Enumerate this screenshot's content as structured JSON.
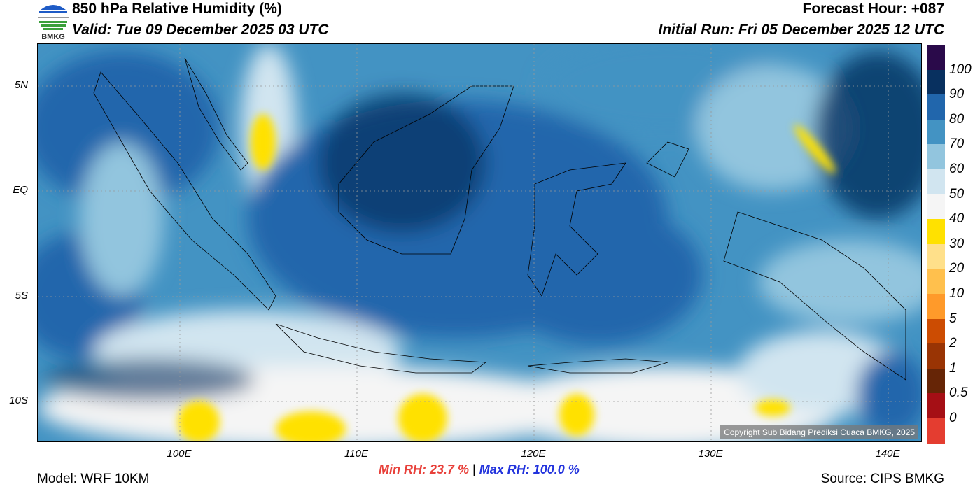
{
  "header": {
    "title": "850 hPa Relative Humidity (%)",
    "valid": "Valid: Tue 09 December 2025 03 UTC",
    "forecast_hour": "Forecast Hour: +087",
    "initial_run": "Initial Run: Fri 05 December 2025 12 UTC",
    "logo_text": "BMKG"
  },
  "axes": {
    "lat_labels": [
      "5N",
      "EQ",
      "5S",
      "10S"
    ],
    "lon_labels": [
      "100E",
      "110E",
      "120E",
      "130E",
      "140E"
    ]
  },
  "colorbar": {
    "labels": [
      "100",
      "90",
      "80",
      "70",
      "60",
      "50",
      "40",
      "30",
      "20",
      "10",
      "5",
      "2",
      "1",
      "0.5",
      "0"
    ],
    "colors": [
      "#2a0a4a",
      "#08305f",
      "#2166ac",
      "#4393c3",
      "#92c5de",
      "#d1e5f0",
      "#f5f5f5",
      "#ffe100",
      "#ffe08a",
      "#ffc04d",
      "#ff9a2a",
      "#cc4c02",
      "#993404",
      "#662506",
      "#a50f15",
      "#e43d30"
    ]
  },
  "footer": {
    "model": "Model: WRF 10KM",
    "min_rh": "Min RH:  23.7 %",
    "separator": "|",
    "max_rh": "Max RH: 100.0 %",
    "source": "Source: CIPS BMKG",
    "copyright": "Copyright Sub Bidang Prediksi Cuaca BMKG, 2025"
  }
}
